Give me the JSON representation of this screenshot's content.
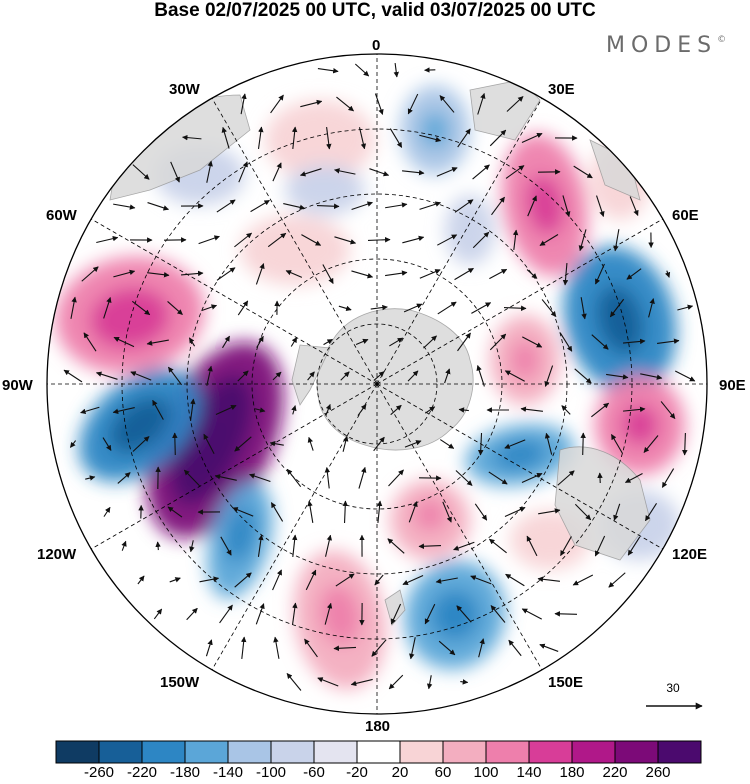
{
  "title": "Base 02/07/2025 00 UTC, valid 03/07/2025 00 UTC",
  "brand": {
    "name": "MODES",
    "mark": "©"
  },
  "longitude_labels": {
    "lon_0": "0",
    "lon_30e": "30E",
    "lon_60e": "60E",
    "lon_90e": "90E",
    "lon_120e": "120E",
    "lon_150e": "150E",
    "lon_180": "180",
    "lon_150w": "150W",
    "lon_120w": "120W",
    "lon_90w": "90W",
    "lon_60w": "60W",
    "lon_30w": "30W"
  },
  "reference_vector": {
    "value": "30"
  },
  "colorbar": {
    "ticks": [
      "-260",
      "-220",
      "-180",
      "-140",
      "-100",
      "-60",
      "-20",
      "20",
      "60",
      "100",
      "140",
      "180",
      "220",
      "260"
    ],
    "colors": [
      "#0f3b63",
      "#175f98",
      "#2d86c4",
      "#5ba6d8",
      "#a9c5e6",
      "#c9d3ea",
      "#e4e4f0",
      "#ffffff",
      "#f8d4d6",
      "#f3aec0",
      "#ee7fac",
      "#d83d98",
      "#b01889",
      "#7c0a78",
      "#4b0a6e"
    ]
  },
  "map": {
    "projection": "south polar stereographic",
    "field": "geopotential height anomaly",
    "colors": {
      "land": "#d9d9d9",
      "coast": "#999999",
      "graticule": "#000000",
      "arrow": "#111111"
    }
  }
}
